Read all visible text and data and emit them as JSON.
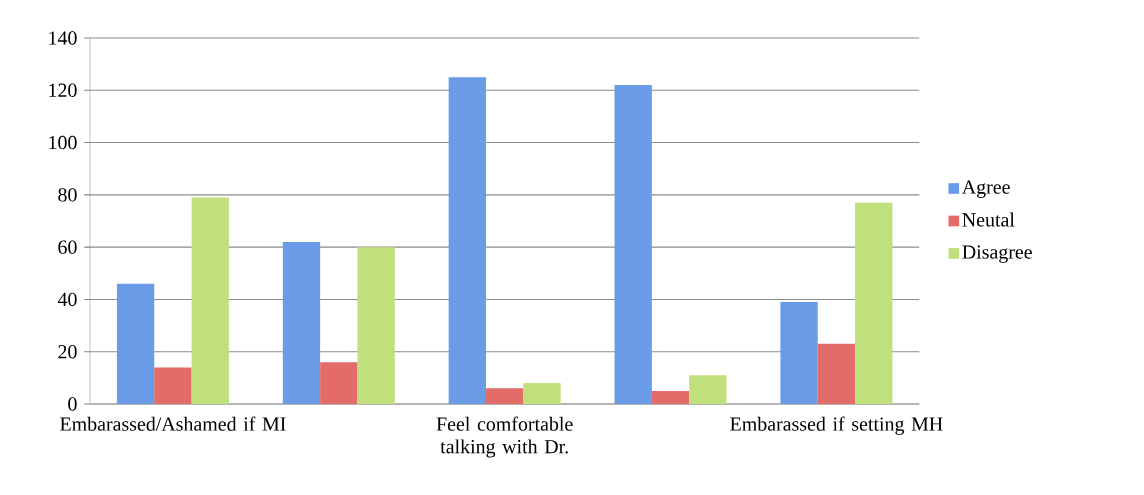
{
  "chart_data": {
    "type": "bar",
    "categories": [
      "Embarassed/Ashamed if MI",
      null,
      "Feel comfortable talking with Dr.",
      null,
      "Embarassed if setting MH"
    ],
    "series": [
      {
        "name": "Agree",
        "color": "#6a9be6",
        "values": [
          46,
          62,
          125,
          122,
          39
        ]
      },
      {
        "name": "Neutal",
        "color": "#e36b68",
        "values": [
          14,
          16,
          6,
          5,
          23
        ]
      },
      {
        "name": "Disagree",
        "color": "#bfe07c",
        "values": [
          79,
          60,
          8,
          11,
          77
        ]
      }
    ],
    "ylim": [
      0,
      140
    ],
    "yticks": [
      0,
      20,
      40,
      60,
      80,
      100,
      120,
      140
    ],
    "grid": "y",
    "legend": "right"
  }
}
